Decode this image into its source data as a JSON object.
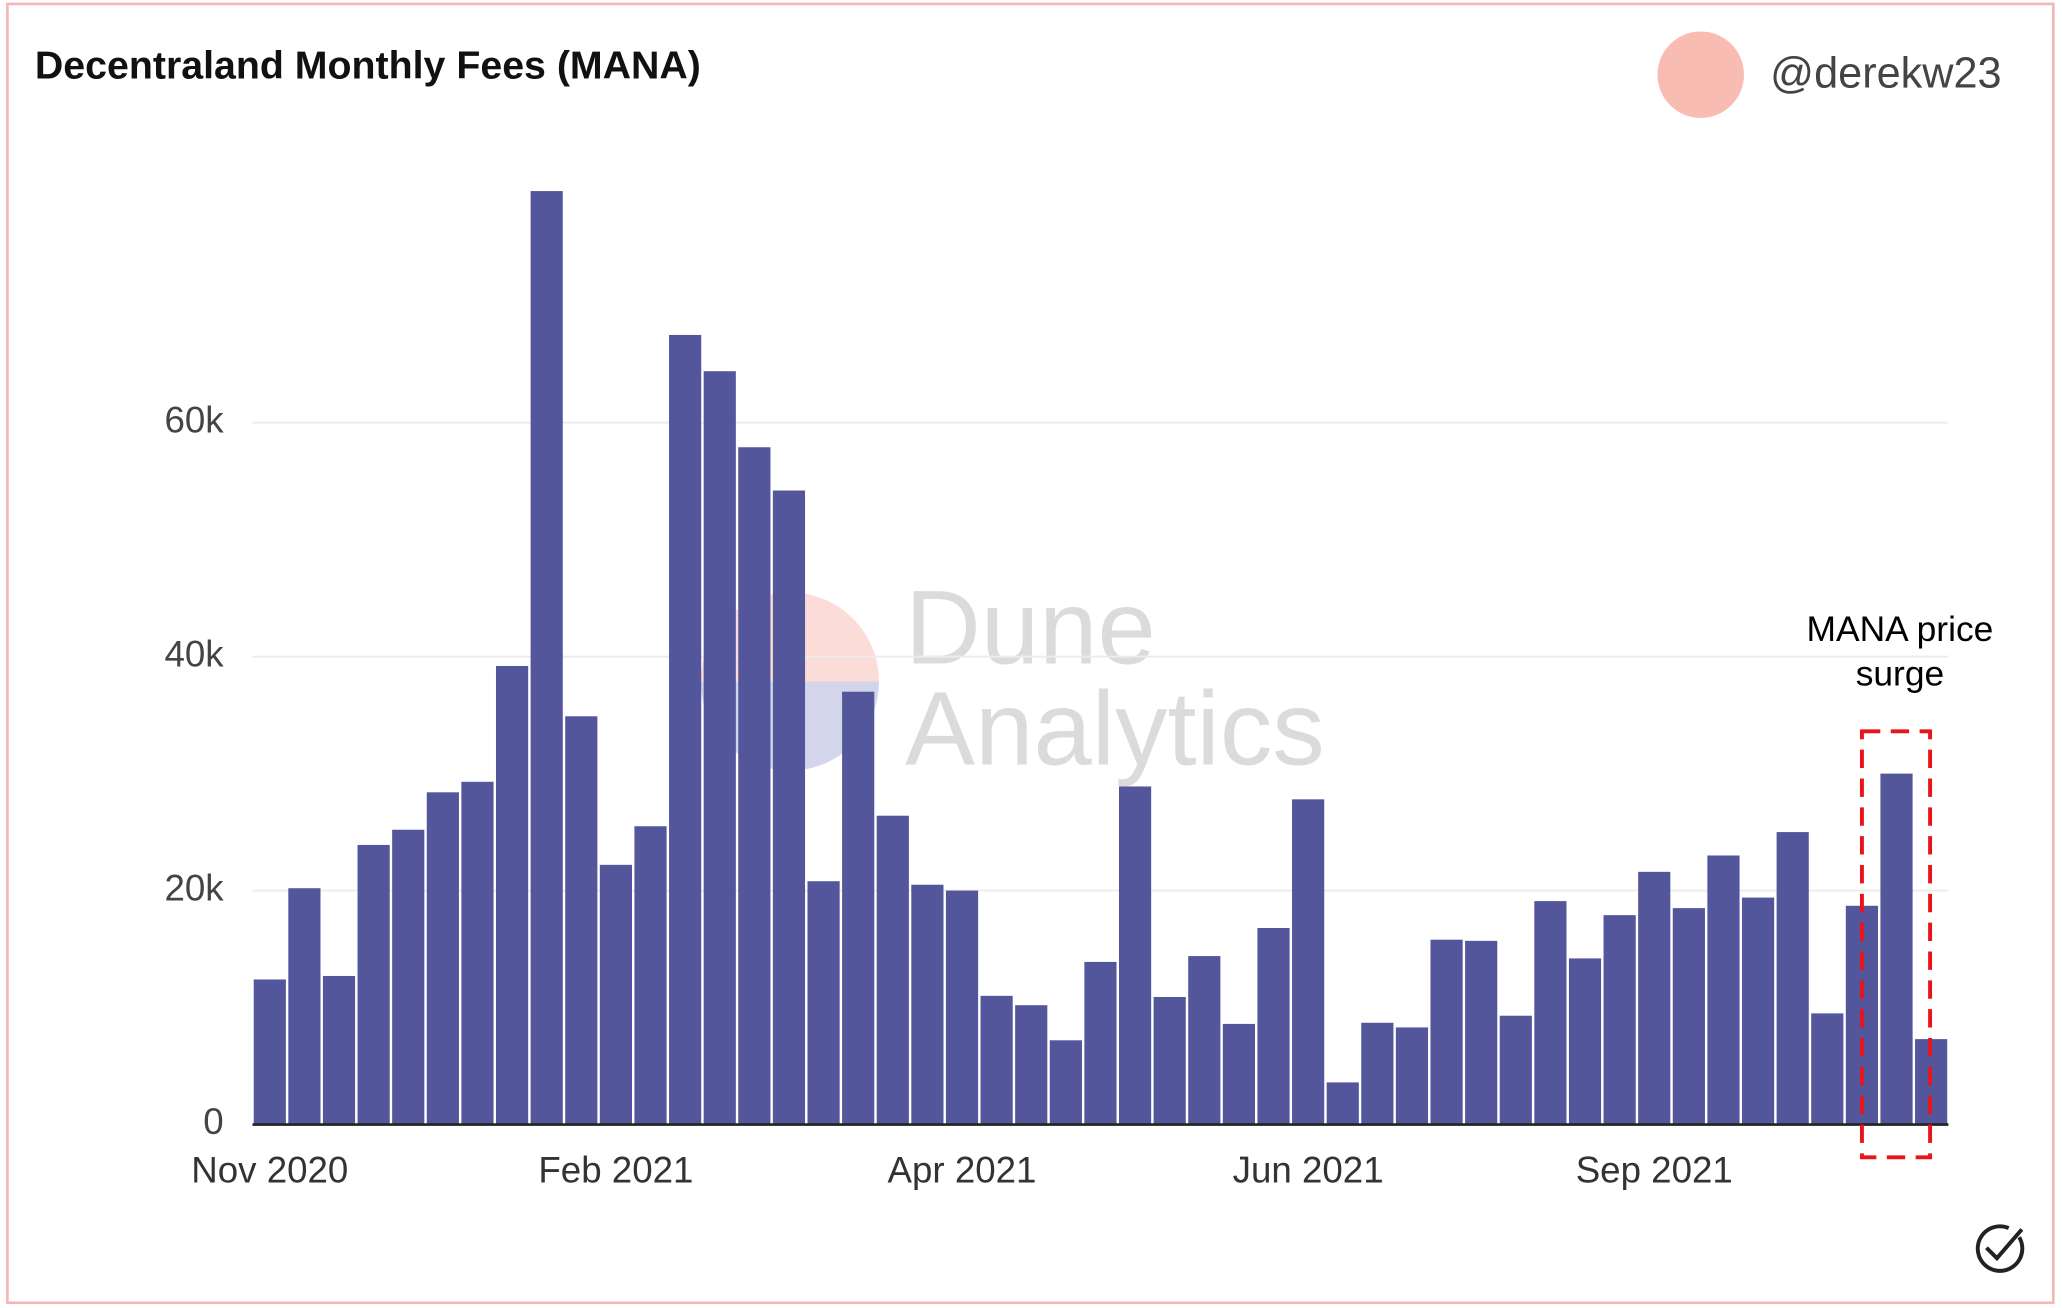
{
  "chart_data": {
    "type": "bar",
    "title": "Decentraland Monthly Fees (MANA)",
    "author": "@derekw23",
    "watermark": [
      "Dune",
      "Analytics"
    ],
    "annotation": [
      "MANA price",
      "surge"
    ],
    "categories": [
      "Nov 2020",
      null,
      null,
      null,
      null,
      null,
      null,
      null,
      null,
      null,
      "Feb 2021",
      null,
      null,
      null,
      null,
      null,
      null,
      null,
      null,
      null,
      "Apr 2021",
      null,
      null,
      null,
      null,
      null,
      null,
      null,
      null,
      null,
      "Jun 2021",
      null,
      null,
      null,
      null,
      null,
      null,
      null,
      null,
      null,
      "Sep 2021",
      null,
      null,
      null,
      null,
      null,
      null,
      null,
      null
    ],
    "values": [
      12400,
      20200,
      12700,
      23900,
      25200,
      28400,
      29300,
      39200,
      79800,
      34900,
      22200,
      25500,
      67500,
      64400,
      57900,
      54200,
      20800,
      37000,
      26400,
      20500,
      20000,
      11000,
      10200,
      7200,
      13900,
      28900,
      10900,
      14400,
      8600,
      16800,
      27800,
      3600,
      8700,
      8300,
      15800,
      15700,
      9300,
      19100,
      14200,
      17900,
      21600,
      18500,
      23000,
      19400,
      25000,
      9500,
      18700,
      30000,
      7300
    ],
    "color": "#54569c",
    "ylim": [
      0,
      80000
    ],
    "yticks": [
      0,
      {
        "value": 20000,
        "label": "20k"
      },
      {
        "value": 40000,
        "label": "40k"
      },
      {
        "value": 60000,
        "label": "60k"
      }
    ],
    "grid": true
  }
}
